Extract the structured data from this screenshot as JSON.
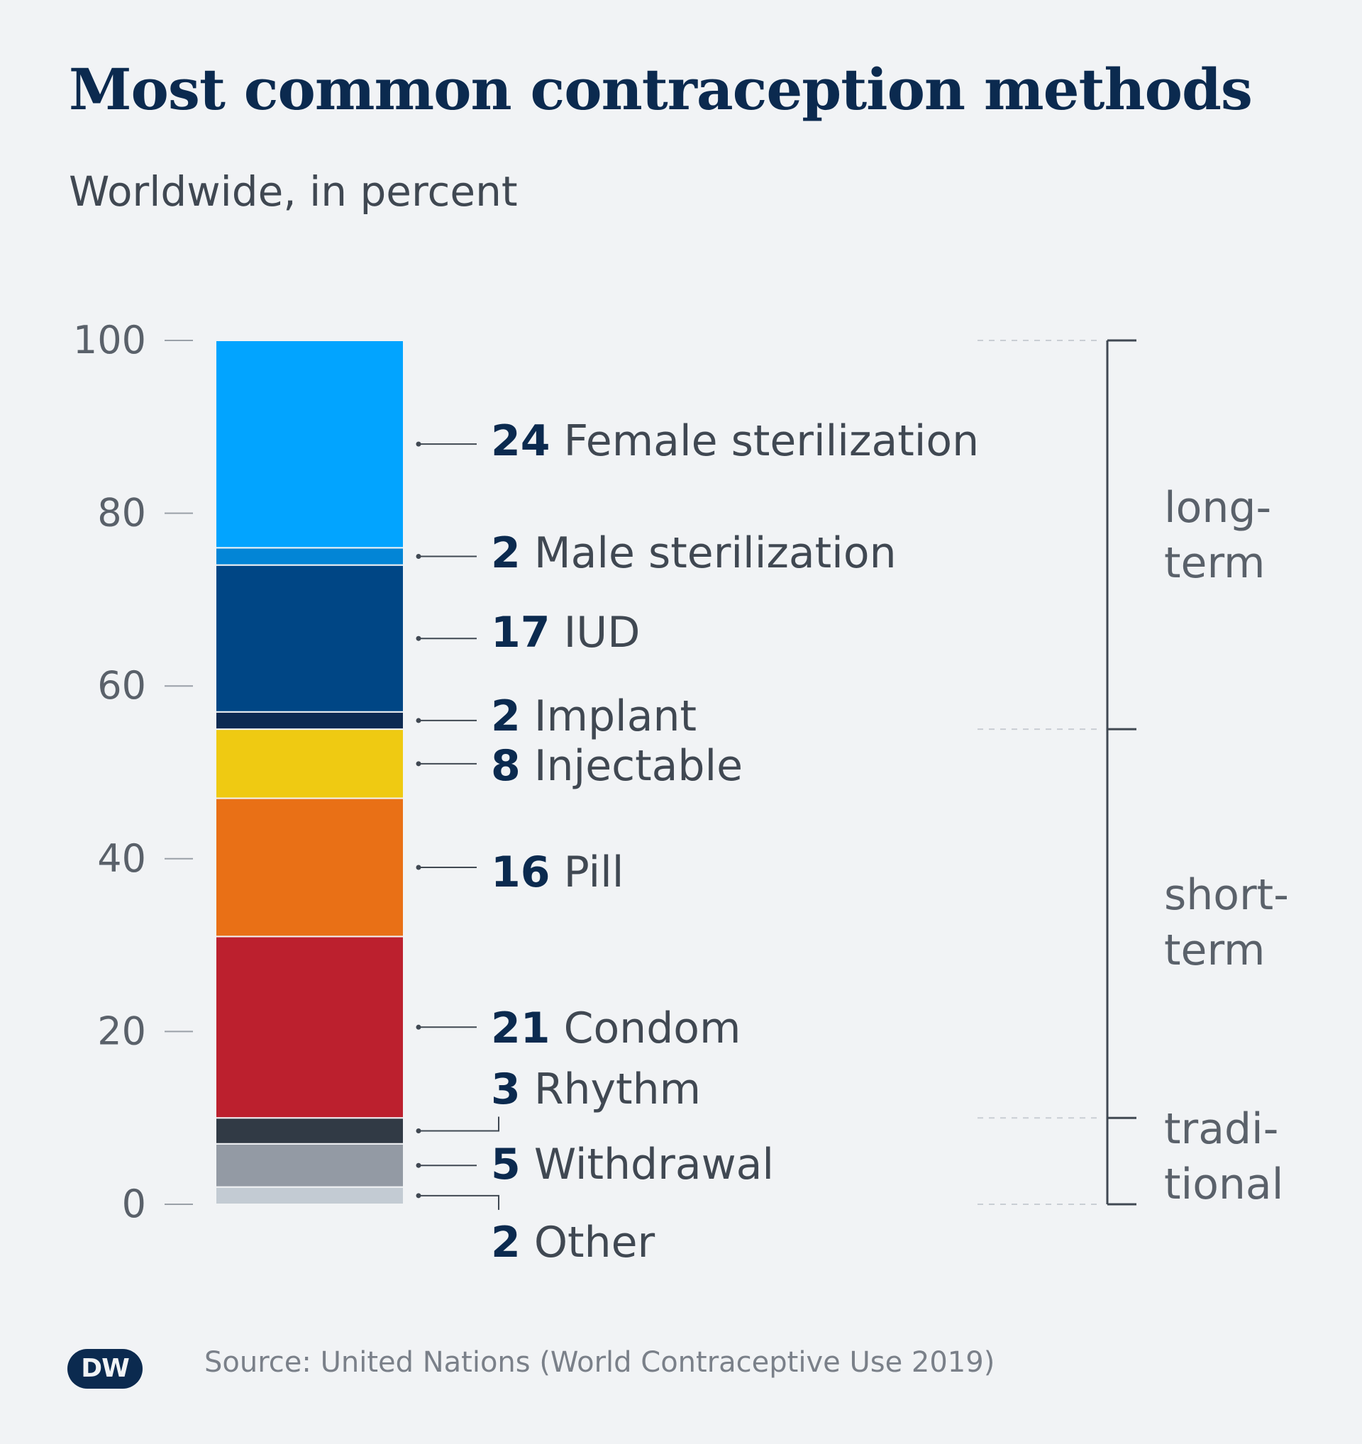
{
  "header": {
    "title": "Most common contraception methods",
    "subtitle": "Worldwide, in percent"
  },
  "footer": {
    "source": "Source: United Nations (World Contraceptive Use 2019)",
    "logo_text": "DW"
  },
  "chart_data": {
    "type": "bar",
    "stacked": true,
    "title": "Most common contraception methods",
    "subtitle": "Worldwide, in percent",
    "ylim": [
      0,
      100
    ],
    "yticks": [
      "0",
      "20",
      "40",
      "60",
      "80",
      "100"
    ],
    "grid": false,
    "segments": [
      {
        "label": "Other",
        "value": 2,
        "color": "#c3cbd3"
      },
      {
        "label": "Withdrawal",
        "value": 5,
        "color": "#939aa4"
      },
      {
        "label": "Rhythm",
        "value": 3,
        "color": "#313a45"
      },
      {
        "label": "Condom",
        "value": 21,
        "color": "#bc202e"
      },
      {
        "label": "Pill",
        "value": 16,
        "color": "#e97016"
      },
      {
        "label": "Injectable",
        "value": 8,
        "color": "#efca12"
      },
      {
        "label": "Implant",
        "value": 2,
        "color": "#0c2a52"
      },
      {
        "label": "IUD",
        "value": 17,
        "color": "#004685"
      },
      {
        "label": "Male sterilization",
        "value": 2,
        "color": "#0285d6"
      },
      {
        "label": "Female sterilization",
        "value": 24,
        "color": "#02a4ff"
      }
    ],
    "groups": [
      {
        "label_lines": [
          "long-",
          "term"
        ],
        "from": 55,
        "to": 100
      },
      {
        "label_lines": [
          "short-",
          "term"
        ],
        "from": 10,
        "to": 55
      },
      {
        "label_lines": [
          "tradi-",
          "tional"
        ],
        "from": 0,
        "to": 10
      }
    ]
  }
}
